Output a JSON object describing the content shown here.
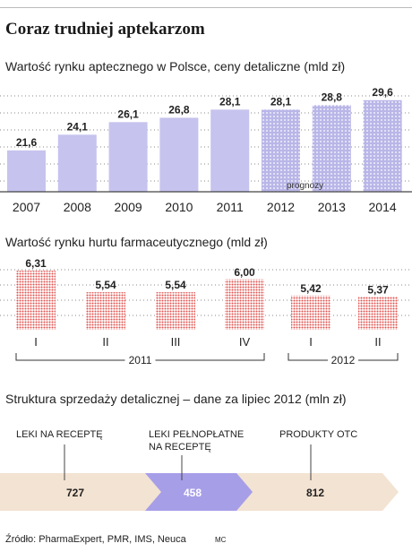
{
  "title": "Coraz trudniej aptekarzom",
  "chart_data": [
    {
      "type": "bar",
      "title": "Wartość rynku aptecznego w Polsce, ceny detaliczne (mld zł)",
      "categories": [
        "2007",
        "2008",
        "2009",
        "2010",
        "2011",
        "2012",
        "2013",
        "2014"
      ],
      "values": [
        21.6,
        24.1,
        26.1,
        26.8,
        28.1,
        28.1,
        28.8,
        29.6
      ],
      "value_labels": [
        "21,6",
        "24,1",
        "26,1",
        "26,8",
        "28,1",
        "28,1",
        "28,8",
        "29,6"
      ],
      "forecast_from": "2012",
      "forecast_label": "prognozy",
      "colors": {
        "actual": "#c6c3ee",
        "forecast": "#b9b6e8"
      },
      "grid": true
    },
    {
      "type": "bar",
      "title": "Wartość rynku hurtu farmaceutycznego (mld zł)",
      "categories": [
        "I",
        "II",
        "III",
        "IV",
        "I",
        "II"
      ],
      "values": [
        6.31,
        5.54,
        5.54,
        6.0,
        5.42,
        5.37
      ],
      "value_labels": [
        "6,31",
        "5,54",
        "5,54",
        "6,00",
        "5,42",
        "5,37"
      ],
      "groups": [
        {
          "label": "2011",
          "categories": [
            "I",
            "II",
            "III",
            "IV"
          ]
        },
        {
          "label": "2012",
          "categories": [
            "I",
            "II"
          ]
        }
      ],
      "colors": {
        "bars": "#e0524f"
      },
      "grid": true
    },
    {
      "type": "bar",
      "title": "Struktura sprzedaży detalicznej – dane za lipiec 2012 (mln zł)",
      "categories": [
        "LEKI NA RECEPTĘ",
        "LEKI PEŁNOPŁATNE NA RECEPTĘ",
        "PRODUKTY OTC"
      ],
      "callout_labels": [
        "LEKI NA RECEPTĘ",
        "LEKI PEŁNOPŁATNE",
        "NA RECEPTĘ",
        "PRODUKTY OTC"
      ],
      "values": [
        727,
        458,
        812
      ],
      "value_labels": [
        "727",
        "458",
        "812"
      ],
      "colors": [
        "#f3e3d2",
        "#a79ee8",
        "#f3e3d2"
      ]
    }
  ],
  "source": "Źródło: PharmaExpert, PMR, IMS, Neuca",
  "author": "MC"
}
